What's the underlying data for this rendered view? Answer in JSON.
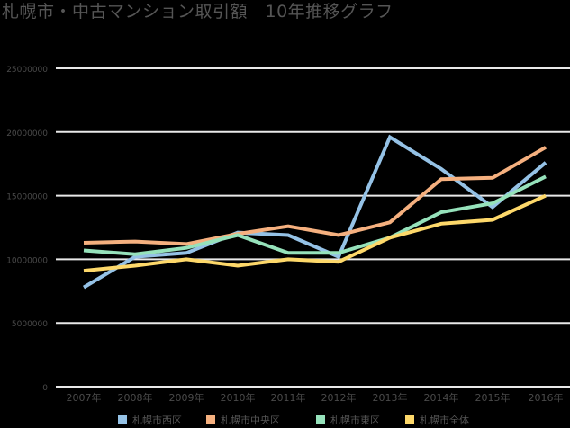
{
  "title": "札幌市・中古マンション取引額　10年推移グラフ",
  "colors": {
    "background": "#000000",
    "grid": "#e8e8e8",
    "axis_text": "#4a4a4a",
    "nishi": "#95c2e6",
    "chuo": "#f5b07f",
    "higashi": "#96e2bb",
    "zentai": "#fdd86a"
  },
  "legend": [
    {
      "label": "札幌市西区",
      "color": "#95c2e6"
    },
    {
      "label": "札幌市中央区",
      "color": "#f5b07f"
    },
    {
      "label": "札幌市東区",
      "color": "#96e2bb"
    },
    {
      "label": "札幌市全体",
      "color": "#fdd86a"
    }
  ],
  "chart_data": {
    "type": "line",
    "title": "札幌市・中古マンション取引額　10年推移グラフ",
    "xlabel": "",
    "ylabel": "",
    "categories": [
      "2007年",
      "2008年",
      "2009年",
      "2010年",
      "2011年",
      "2012年",
      "2013年",
      "2014年",
      "2015年",
      "2016年"
    ],
    "y_ticks": [
      "0",
      "5000000",
      "10000000",
      "15000000",
      "20000000",
      "25000000"
    ],
    "ylim": [
      0,
      25000000
    ],
    "grid": true,
    "legend_position": "bottom",
    "series": [
      {
        "name": "札幌市西区",
        "color": "#95c2e6",
        "values": [
          7800000,
          10200000,
          10500000,
          12100000,
          11900000,
          10200000,
          19600000,
          17100000,
          14100000,
          17600000
        ]
      },
      {
        "name": "札幌市中央区",
        "color": "#f5b07f",
        "values": [
          11300000,
          11400000,
          11200000,
          12000000,
          12600000,
          11900000,
          12900000,
          16300000,
          16400000,
          18800000
        ]
      },
      {
        "name": "札幌市東区",
        "color": "#96e2bb",
        "values": [
          10700000,
          10400000,
          10900000,
          11900000,
          10500000,
          10500000,
          11700000,
          13700000,
          14400000,
          16500000
        ]
      },
      {
        "name": "札幌市全体",
        "color": "#fdd86a",
        "values": [
          9100000,
          9500000,
          10000000,
          9500000,
          10000000,
          9800000,
          11700000,
          12800000,
          13100000,
          15000000
        ]
      }
    ]
  }
}
